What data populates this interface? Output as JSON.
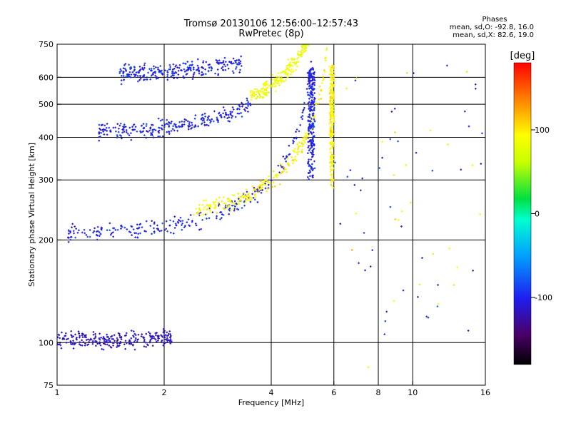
{
  "header": {
    "title_line1": "Tromsø 20130106 12:56:00–12:57:43",
    "title_line2": "RwPretec (8p)"
  },
  "phases": {
    "title": "Phases",
    "line_o": "mean, sd,O: -92.8, 16.0",
    "line_x": "mean, sd,X: 82.6, 19.0"
  },
  "chart_data": {
    "type": "scatter",
    "xlabel": "Frequency [MHz]",
    "ylabel": "Stationary phase Virtual Height [km]",
    "x_scale": "log",
    "y_scale": "log",
    "xlim": [
      1,
      16
    ],
    "ylim": [
      75,
      750
    ],
    "x_ticks": [
      1,
      2,
      4,
      6,
      8,
      10,
      16
    ],
    "x_tick_labels": [
      "1",
      "2",
      "4",
      "6",
      "8",
      "10",
      "16"
    ],
    "x_grid": [
      2,
      4,
      6,
      8,
      10
    ],
    "y_ticks": [
      75,
      100,
      200,
      300,
      400,
      500,
      600,
      750
    ],
    "y_tick_labels": [
      "75",
      "100",
      "200",
      "300",
      "400",
      "500",
      "600",
      "750"
    ],
    "y_grid": [
      100,
      200,
      300,
      400,
      500,
      600
    ],
    "grid": true,
    "colorbar": {
      "label": "[deg]",
      "range": [
        -180,
        180
      ],
      "ticks": [
        100,
        0,
        -100
      ],
      "tick_labels": [
        "100",
        "0",
        "-100"
      ]
    },
    "traces": [
      {
        "mode": "O",
        "f_start": 1.07,
        "f_end": 5.2,
        "h0": 205,
        "fc": 5.45,
        "phase": -100
      },
      {
        "mode": "X",
        "f_start": 2.4,
        "f_end": 5.95,
        "h0": 222,
        "fc": 6.02,
        "phase": 95
      },
      {
        "mode": "O-cusp",
        "f_start": 5.08,
        "f_end": 5.3,
        "h_start": 300,
        "h_end": 640,
        "phase": -100
      },
      {
        "mode": "X-cusp",
        "f_start": 5.85,
        "f_end": 6.0,
        "h_start": 280,
        "h_end": 650,
        "phase": 95
      },
      {
        "mode": "O-2hop",
        "f_start": 1.3,
        "f_end": 3.5,
        "h0": 405,
        "fc": 6.0,
        "phase": -100
      },
      {
        "mode": "X-2hop",
        "f_start": 3.5,
        "f_end": 5.7,
        "h0": 430,
        "fc": 6.1,
        "phase": 85
      },
      {
        "mode": "O-3hop",
        "f_start": 1.5,
        "f_end": 3.3,
        "h0": 605,
        "fc": 8.0,
        "phase": -100
      },
      {
        "mode": "E",
        "f_start": 1.0,
        "f_end": 2.1,
        "h0": 101,
        "fc": 9.0,
        "phase": -115
      }
    ]
  }
}
